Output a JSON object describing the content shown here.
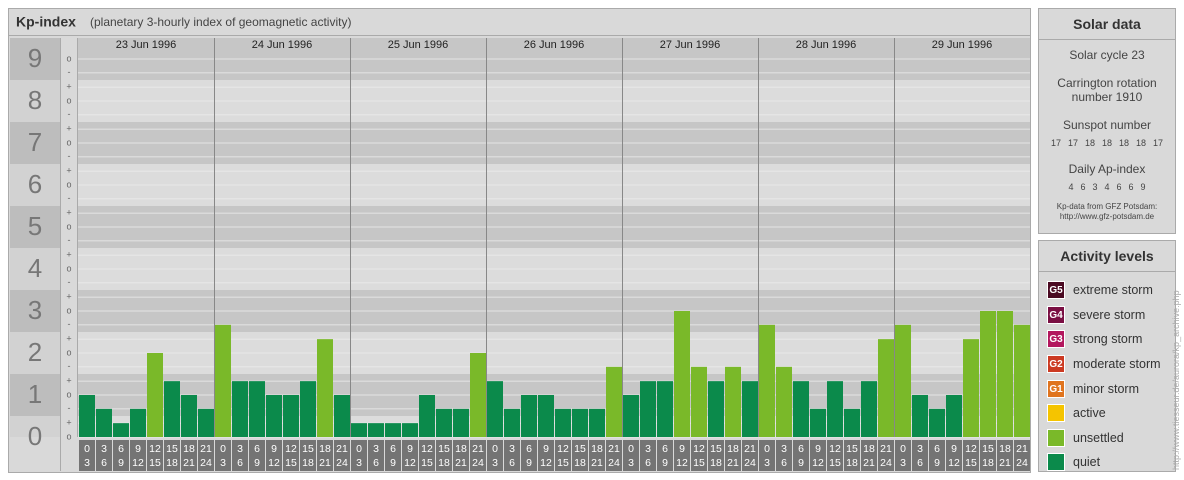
{
  "chart_data": {
    "type": "bar",
    "title": "Kp-index",
    "subtitle": "(planetary 3-hourly index of geomagnetic activity)",
    "categories": [
      [
        "0",
        "3"
      ],
      [
        "3",
        "6"
      ],
      [
        "6",
        "9"
      ],
      [
        "9",
        "12"
      ],
      [
        "12",
        "15"
      ],
      [
        "15",
        "18"
      ],
      [
        "18",
        "21"
      ],
      [
        "21",
        "24"
      ]
    ],
    "series": [
      {
        "name": "23 Jun 1996",
        "values": [
          1,
          0.67,
          0.33,
          0.67,
          2,
          1.33,
          1,
          0.67
        ],
        "colors": [
          "#0b8a4b",
          "#0b8a4b",
          "#0b8a4b",
          "#0b8a4b",
          "#7ab929",
          "#0b8a4b",
          "#0b8a4b",
          "#0b8a4b"
        ]
      },
      {
        "name": "24 Jun 1996",
        "values": [
          2.67,
          1.33,
          1.33,
          1,
          1,
          1.33,
          2.33,
          1
        ],
        "colors": [
          "#7ab929",
          "#0b8a4b",
          "#0b8a4b",
          "#0b8a4b",
          "#0b8a4b",
          "#0b8a4b",
          "#7ab929",
          "#0b8a4b"
        ]
      },
      {
        "name": "25 Jun 1996",
        "values": [
          0.33,
          0.33,
          0.33,
          0.33,
          1,
          0.67,
          0.67,
          2
        ],
        "colors": [
          "#0b8a4b",
          "#0b8a4b",
          "#0b8a4b",
          "#0b8a4b",
          "#0b8a4b",
          "#0b8a4b",
          "#0b8a4b",
          "#7ab929"
        ]
      },
      {
        "name": "26 Jun 1996",
        "values": [
          1.33,
          0.67,
          1,
          1,
          0.67,
          0.67,
          0.67,
          1.67
        ],
        "colors": [
          "#0b8a4b",
          "#0b8a4b",
          "#0b8a4b",
          "#0b8a4b",
          "#0b8a4b",
          "#0b8a4b",
          "#0b8a4b",
          "#7ab929"
        ]
      },
      {
        "name": "27 Jun 1996",
        "values": [
          1,
          1.33,
          1.33,
          3,
          1.67,
          1.33,
          1.67,
          1.33
        ],
        "colors": [
          "#0b8a4b",
          "#0b8a4b",
          "#0b8a4b",
          "#7ab929",
          "#7ab929",
          "#0b8a4b",
          "#7ab929",
          "#0b8a4b"
        ]
      },
      {
        "name": "28 Jun 1996",
        "values": [
          2.67,
          1.67,
          1.33,
          0.67,
          1.33,
          0.67,
          1.33,
          2.33
        ],
        "colors": [
          "#7ab929",
          "#7ab929",
          "#0b8a4b",
          "#0b8a4b",
          "#0b8a4b",
          "#0b8a4b",
          "#0b8a4b",
          "#7ab929"
        ]
      },
      {
        "name": "29 Jun 1996",
        "values": [
          2.67,
          1,
          0.67,
          1,
          2.33,
          3,
          3,
          2.67
        ],
        "colors": [
          "#7ab929",
          "#0b8a4b",
          "#0b8a4b",
          "#0b8a4b",
          "#7ab929",
          "#7ab929",
          "#7ab929",
          "#7ab929"
        ]
      }
    ],
    "ylim": [
      0,
      9.5
    ],
    "yticks": [
      0,
      1,
      2,
      3,
      4,
      5,
      6,
      7,
      8,
      9
    ],
    "y_minor_ticks": [
      {
        "value": 0,
        "label": "o"
      },
      {
        "value": 0.33,
        "label": "+"
      },
      {
        "value": 0.67,
        "label": "-"
      },
      {
        "value": 1,
        "label": "o"
      },
      {
        "value": 1.33,
        "label": "+"
      },
      {
        "value": 1.67,
        "label": "-"
      },
      {
        "value": 2,
        "label": "o"
      },
      {
        "value": 2.33,
        "label": "+"
      },
      {
        "value": 2.67,
        "label": "-"
      },
      {
        "value": 3,
        "label": "o"
      },
      {
        "value": 3.33,
        "label": "+"
      },
      {
        "value": 3.67,
        "label": "-"
      },
      {
        "value": 4,
        "label": "o"
      },
      {
        "value": 4.33,
        "label": "+"
      },
      {
        "value": 4.67,
        "label": "-"
      },
      {
        "value": 5,
        "label": "o"
      },
      {
        "value": 5.33,
        "label": "+"
      },
      {
        "value": 5.67,
        "label": "-"
      },
      {
        "value": 6,
        "label": "o"
      },
      {
        "value": 6.33,
        "label": "+"
      },
      {
        "value": 6.67,
        "label": "-"
      },
      {
        "value": 7,
        "label": "o"
      },
      {
        "value": 7.33,
        "label": "+"
      },
      {
        "value": 7.67,
        "label": "-"
      },
      {
        "value": 8,
        "label": "o"
      },
      {
        "value": 8.33,
        "label": "+"
      },
      {
        "value": 8.67,
        "label": "-"
      },
      {
        "value": 9,
        "label": "o"
      }
    ],
    "grid": true
  },
  "solar_data": {
    "title": "Solar data",
    "solar_cycle": "Solar cycle 23",
    "carrington": "Carrington rotation number 1910",
    "sunspot_label": "Sunspot number",
    "sunspot_numbers": [
      "17",
      "17",
      "18",
      "18",
      "18",
      "18",
      "17"
    ],
    "ap_label": "Daily Ap-index",
    "ap_values": [
      "4",
      "6",
      "3",
      "4",
      "6",
      "6",
      "9"
    ],
    "source": "Kp-data from GFZ Potsdam:",
    "source_url": "http://www.gfz-potsdam.de"
  },
  "activity_levels": {
    "title": "Activity levels",
    "items": [
      {
        "badge": "G5",
        "label": "extreme storm",
        "color": "#4a0a22"
      },
      {
        "badge": "G4",
        "label": "severe storm",
        "color": "#7a0f43"
      },
      {
        "badge": "G3",
        "label": "strong storm",
        "color": "#b3175e"
      },
      {
        "badge": "G2",
        "label": "moderate storm",
        "color": "#cc3a22"
      },
      {
        "badge": "G1",
        "label": "minor storm",
        "color": "#e0741e"
      },
      {
        "label": "active",
        "color": "#f5c400"
      },
      {
        "label": "unsettled",
        "color": "#7ab929"
      },
      {
        "label": "quiet",
        "color": "#0b8a4b"
      }
    ]
  },
  "side_url": "http://www.tiesseur.de/aurora/kp_archive.php"
}
